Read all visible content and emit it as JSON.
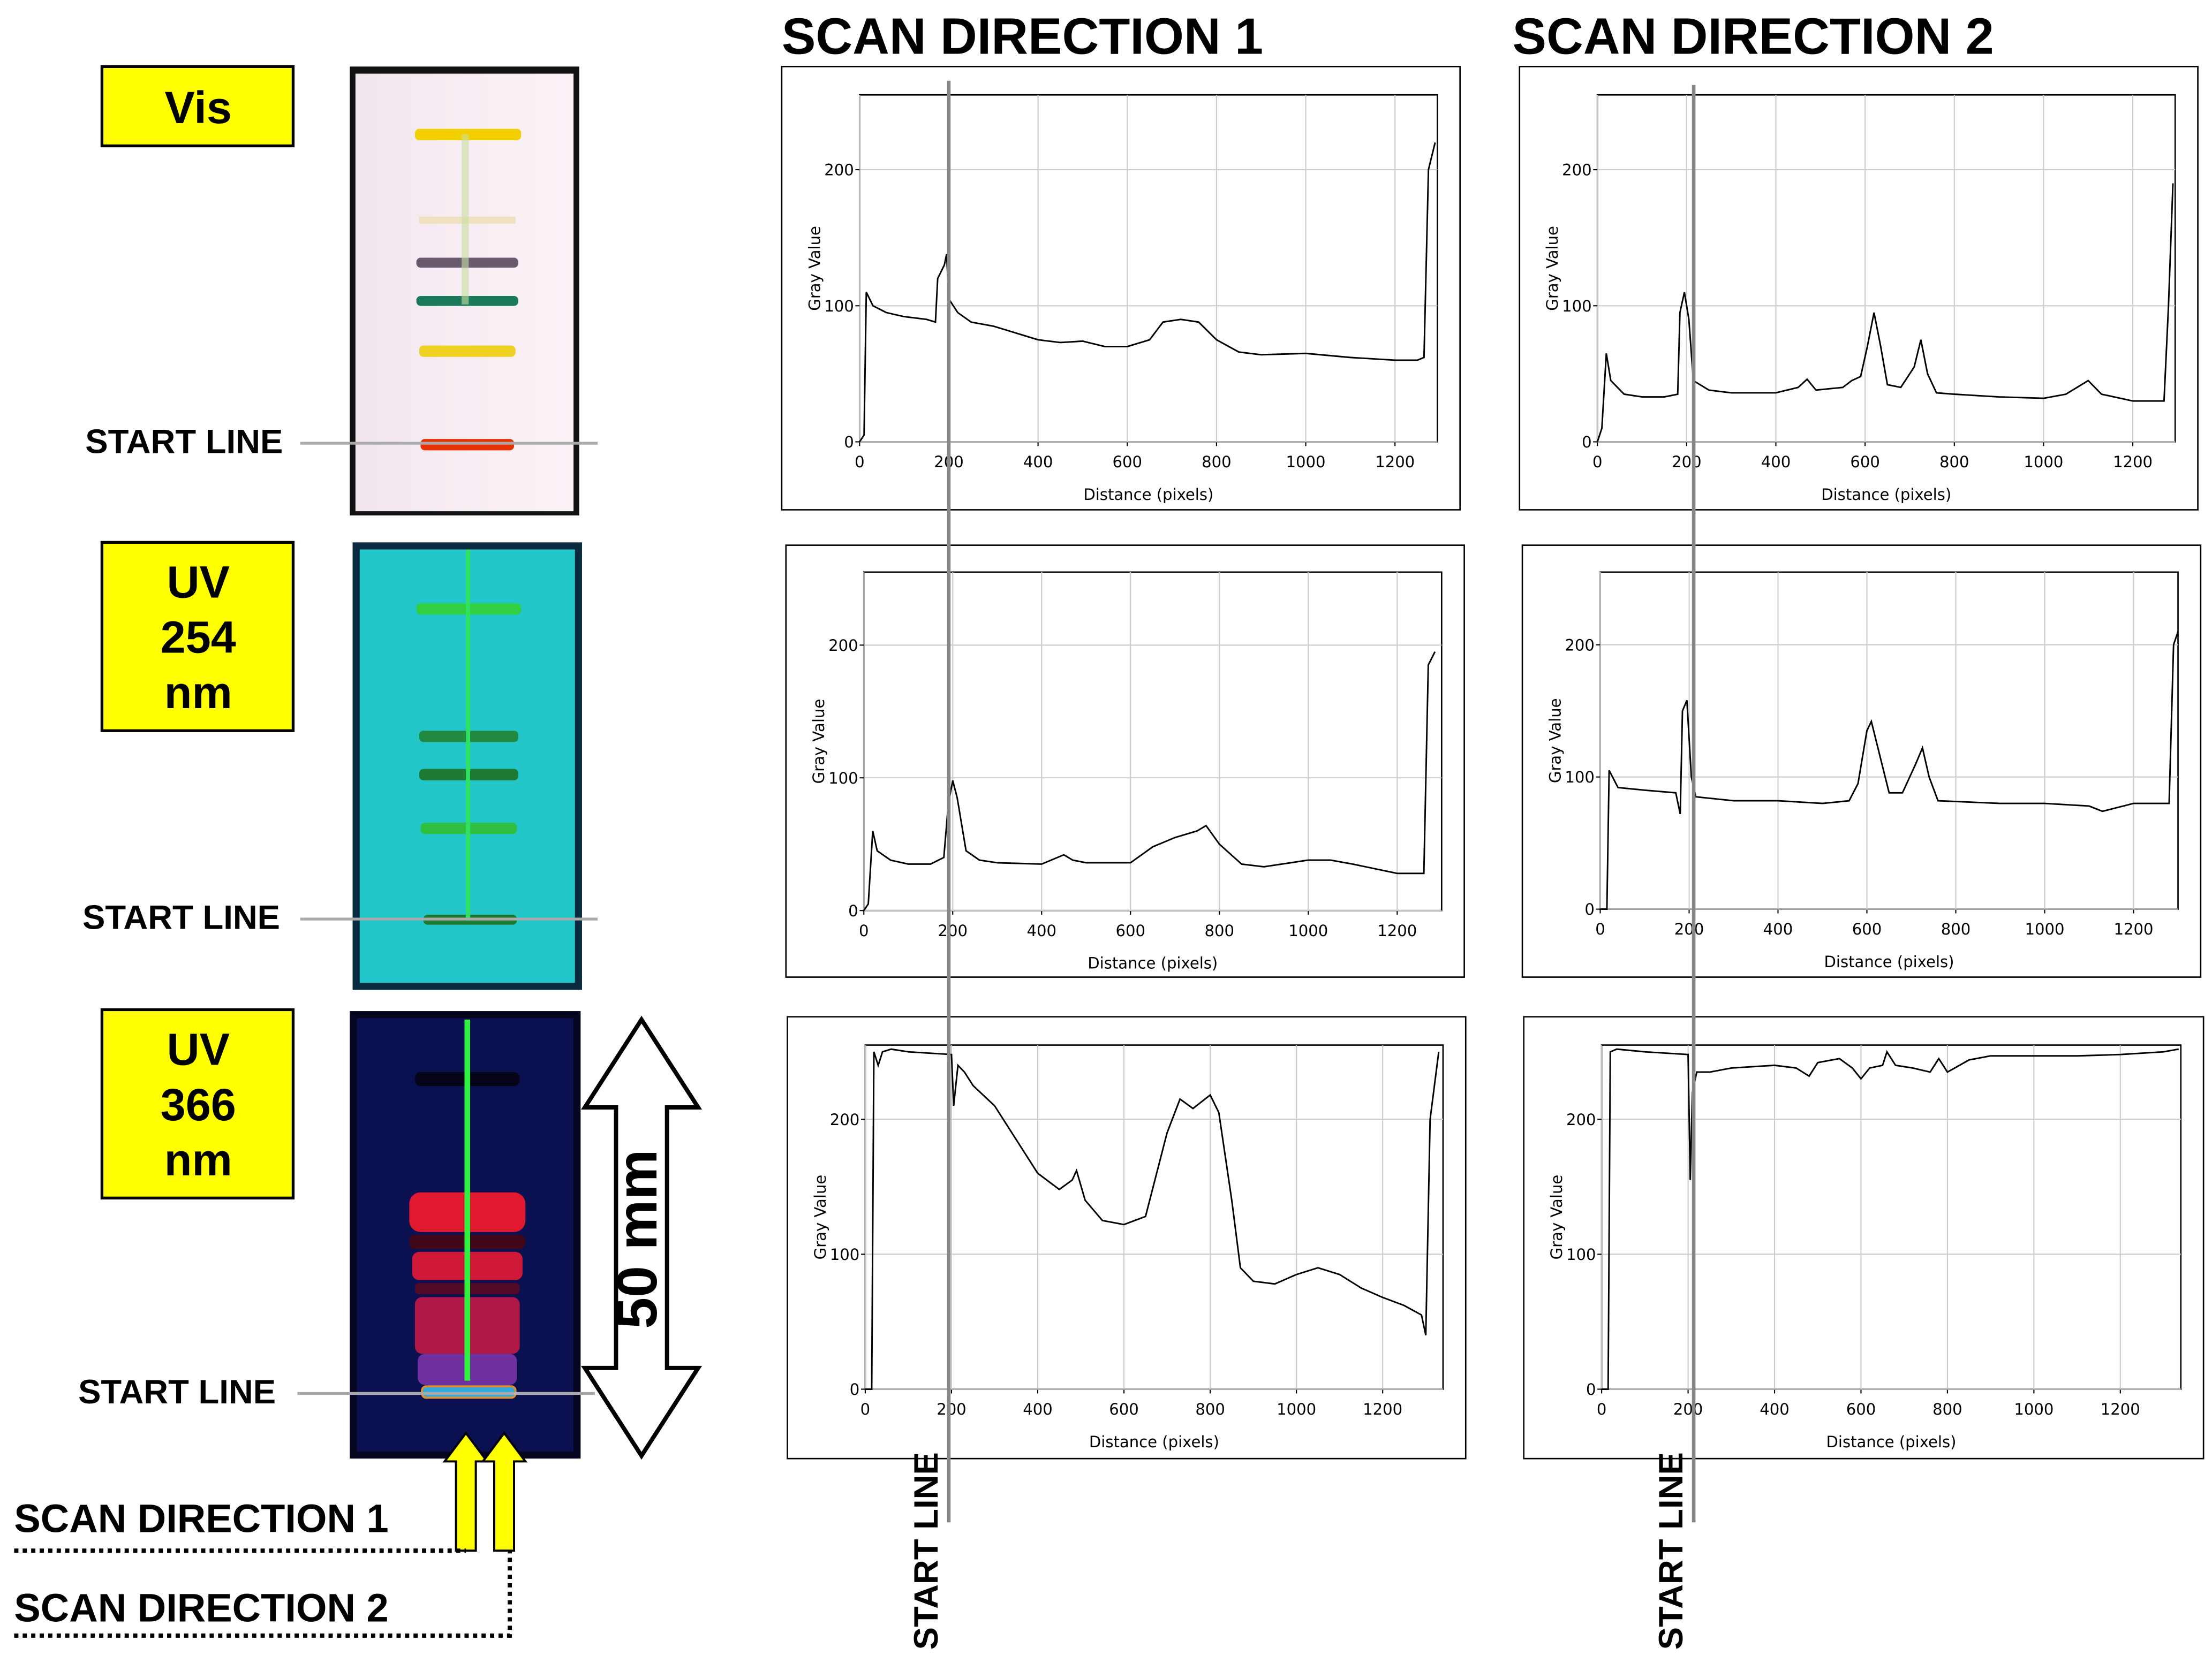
{
  "headers": {
    "scan_direction_1": "SCAN DIRECTION 1",
    "scan_direction_2": "SCAN DIRECTION 2"
  },
  "plates": {
    "vis": [
      "Vis"
    ],
    "uv254": [
      "UV",
      "254",
      "nm"
    ],
    "uv366": [
      "UV",
      "366",
      "nm"
    ],
    "start_line": "START LINE",
    "scale": "50 mm"
  },
  "chart_data": [
    {
      "type": "line",
      "xlabel": "Distance (pixels)",
      "ylabel": "Gray Value",
      "color": "#000000",
      "grid": true,
      "xlim": [
        0,
        1295
      ],
      "ylim": [
        0,
        255
      ],
      "xticks": [
        0,
        200,
        400,
        600,
        800,
        1000,
        1200
      ],
      "yticks": [
        0,
        100,
        200
      ],
      "x": [
        0,
        10,
        15,
        30,
        60,
        100,
        150,
        170,
        175,
        190,
        195,
        200,
        220,
        250,
        300,
        400,
        450,
        500,
        550,
        600,
        650,
        680,
        720,
        760,
        800,
        850,
        900,
        1000,
        1100,
        1200,
        1250,
        1265,
        1275,
        1290
      ],
      "values": [
        0,
        5,
        110,
        100,
        95,
        92,
        90,
        88,
        120,
        130,
        138,
        105,
        95,
        88,
        85,
        75,
        73,
        74,
        70,
        70,
        75,
        88,
        90,
        88,
        75,
        66,
        64,
        65,
        62,
        60,
        60,
        62,
        200,
        220
      ]
    },
    {
      "type": "line",
      "xlabel": "Distance (pixels)",
      "ylabel": "Gray Value",
      "color": "#000000",
      "grid": true,
      "xlim": [
        0,
        1295
      ],
      "ylim": [
        0,
        255
      ],
      "xticks": [
        0,
        200,
        400,
        600,
        800,
        1000,
        1200
      ],
      "yticks": [
        0,
        100,
        200
      ],
      "x": [
        0,
        10,
        20,
        30,
        60,
        100,
        150,
        180,
        185,
        195,
        205,
        215,
        250,
        300,
        400,
        450,
        470,
        490,
        550,
        570,
        590,
        605,
        620,
        635,
        650,
        680,
        710,
        725,
        740,
        760,
        800,
        900,
        1000,
        1050,
        1100,
        1130,
        1200,
        1270,
        1280,
        1290
      ],
      "values": [
        0,
        10,
        65,
        45,
        35,
        33,
        33,
        35,
        95,
        110,
        90,
        45,
        38,
        36,
        36,
        40,
        46,
        38,
        40,
        45,
        48,
        70,
        95,
        70,
        42,
        40,
        55,
        75,
        50,
        36,
        35,
        33,
        32,
        35,
        45,
        35,
        30,
        30,
        100,
        190
      ]
    },
    {
      "type": "line",
      "xlabel": "Distance (pixels)",
      "ylabel": "Gray Value",
      "color": "#000000",
      "grid": true,
      "xlim": [
        0,
        1300
      ],
      "ylim": [
        0,
        255
      ],
      "xticks": [
        0,
        200,
        400,
        600,
        800,
        1000,
        1200
      ],
      "yticks": [
        0,
        100,
        200
      ],
      "x": [
        0,
        10,
        20,
        30,
        60,
        100,
        150,
        180,
        190,
        200,
        210,
        230,
        260,
        300,
        400,
        450,
        470,
        500,
        600,
        650,
        700,
        750,
        770,
        800,
        850,
        900,
        1000,
        1050,
        1100,
        1200,
        1260,
        1270,
        1285
      ],
      "values": [
        0,
        5,
        60,
        45,
        38,
        35,
        35,
        40,
        80,
        98,
        85,
        45,
        38,
        36,
        35,
        42,
        38,
        36,
        36,
        48,
        55,
        60,
        64,
        50,
        35,
        33,
        38,
        38,
        35,
        28,
        28,
        185,
        195
      ]
    },
    {
      "type": "line",
      "xlabel": "Distance (pixels)",
      "ylabel": "Gray Value",
      "color": "#000000",
      "grid": true,
      "xlim": [
        0,
        1300
      ],
      "ylim": [
        0,
        255
      ],
      "xticks": [
        0,
        200,
        400,
        600,
        800,
        1000,
        1200
      ],
      "yticks": [
        0,
        100,
        200
      ],
      "x": [
        0,
        15,
        20,
        40,
        100,
        170,
        180,
        185,
        195,
        205,
        215,
        300,
        400,
        500,
        560,
        580,
        600,
        610,
        630,
        650,
        680,
        710,
        725,
        740,
        760,
        900,
        1000,
        1100,
        1130,
        1200,
        1280,
        1290,
        1300
      ],
      "values": [
        0,
        0,
        105,
        92,
        90,
        88,
        72,
        150,
        158,
        100,
        85,
        82,
        82,
        80,
        82,
        95,
        135,
        142,
        115,
        88,
        88,
        110,
        122,
        100,
        82,
        80,
        80,
        78,
        74,
        80,
        80,
        200,
        210
      ]
    },
    {
      "type": "line",
      "xlabel": "Distance (pixels)",
      "ylabel": "Gray Value",
      "color": "#000000",
      "grid": true,
      "xlim": [
        0,
        1340
      ],
      "ylim": [
        0,
        255
      ],
      "xticks": [
        0,
        200,
        400,
        600,
        800,
        1000,
        1200
      ],
      "yticks": [
        0,
        100,
        200
      ],
      "x": [
        0,
        15,
        20,
        30,
        40,
        60,
        100,
        200,
        205,
        215,
        230,
        250,
        300,
        350,
        400,
        450,
        480,
        490,
        510,
        550,
        600,
        650,
        700,
        730,
        760,
        800,
        820,
        850,
        870,
        900,
        950,
        1000,
        1050,
        1100,
        1150,
        1200,
        1250,
        1290,
        1300,
        1310,
        1330
      ],
      "values": [
        0,
        0,
        250,
        240,
        250,
        252,
        250,
        248,
        210,
        240,
        235,
        225,
        210,
        185,
        160,
        148,
        155,
        162,
        140,
        125,
        122,
        128,
        190,
        215,
        208,
        218,
        205,
        140,
        90,
        80,
        78,
        85,
        90,
        85,
        75,
        68,
        62,
        55,
        40,
        200,
        250
      ]
    },
    {
      "type": "line",
      "xlabel": "Distance (pixels)",
      "ylabel": "Gray Value",
      "color": "#000000",
      "grid": true,
      "xlim": [
        0,
        1340
      ],
      "ylim": [
        0,
        255
      ],
      "xticks": [
        0,
        200,
        400,
        600,
        800,
        1000,
        1200
      ],
      "yticks": [
        0,
        100,
        200
      ],
      "x": [
        0,
        15,
        20,
        35,
        100,
        200,
        205,
        210,
        220,
        250,
        300,
        400,
        450,
        480,
        500,
        550,
        580,
        600,
        620,
        650,
        660,
        680,
        720,
        760,
        780,
        800,
        850,
        900,
        1000,
        1100,
        1200,
        1300,
        1335
      ],
      "values": [
        0,
        0,
        250,
        252,
        250,
        248,
        155,
        220,
        235,
        235,
        238,
        240,
        238,
        232,
        242,
        245,
        238,
        230,
        238,
        240,
        250,
        240,
        238,
        235,
        245,
        235,
        244,
        247,
        247,
        247,
        248,
        250,
        252
      ]
    }
  ]
}
